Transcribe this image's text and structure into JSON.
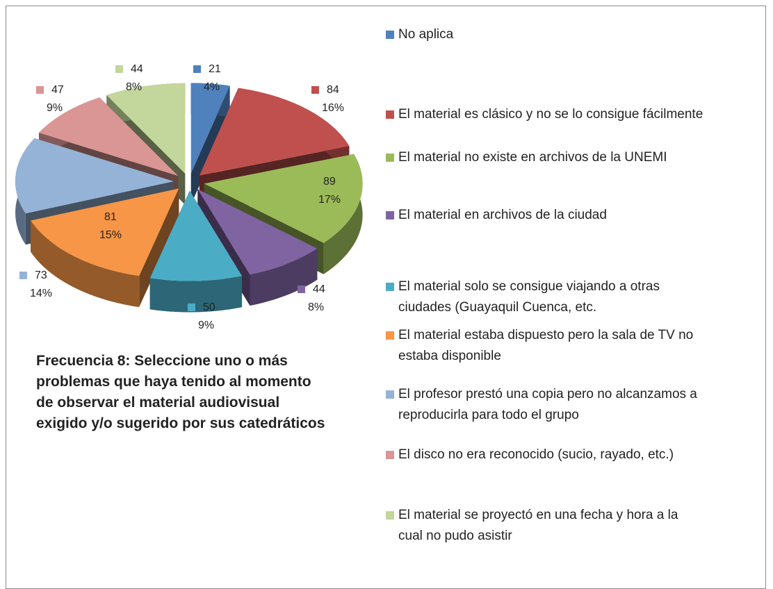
{
  "chart_data": {
    "type": "pie3d",
    "title": "Frecuencia 8: Seleccione uno o más problemas que haya tenido al momento de observar el material audiovisual exigido y/o sugerido por sus catedráticos",
    "categories": [
      "No aplica",
      "El material es clásico y no se lo consigue fácilmente",
      "El material no existe en archivos de la UNEMI",
      "El material en archivos de la ciudad",
      "El material solo se consigue viajando a otras ciudades (Guayaquil Cuenca, etc.",
      "El material estaba dispuesto pero la sala de TV no estaba disponible",
      "El profesor prestó una copia pero no alcanzamos a reproducirla para todo el grupo",
      "El disco no era reconocido (sucio, rayado, etc.)",
      "El material se proyectó en una fecha y hora a la cual no pudo asistir"
    ],
    "values": [
      21,
      84,
      89,
      44,
      50,
      81,
      73,
      47,
      44
    ],
    "percent_labels": [
      "4%",
      "16%",
      "17%",
      "8%",
      "9%",
      "15%",
      "14%",
      "9%",
      "8%"
    ],
    "colors": [
      "#4f81bd",
      "#c0504d",
      "#9bbb59",
      "#8064a2",
      "#4bacc6",
      "#f79646",
      "#95b3d7",
      "#d99694",
      "#c3d69b"
    ],
    "legend": "right"
  }
}
